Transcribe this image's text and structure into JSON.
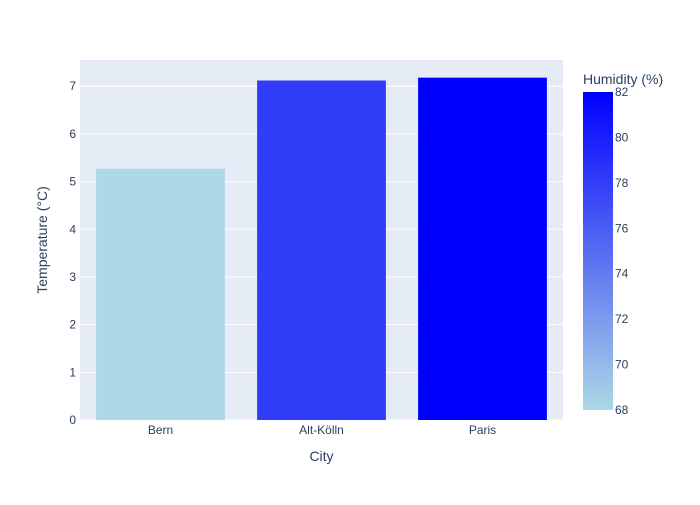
{
  "chart_data": {
    "type": "bar",
    "title": "",
    "xlabel": "City",
    "ylabel": "Temperature (°C)",
    "categories": [
      "Bern",
      "Alt-Kölln",
      "Paris"
    ],
    "values": [
      5.27,
      7.12,
      7.18
    ],
    "humidity": [
      68,
      78,
      82
    ],
    "ylim": [
      0,
      7.55
    ],
    "yticks": [
      "0",
      "1",
      "2",
      "3",
      "4",
      "5",
      "6",
      "7"
    ],
    "grid": true,
    "colorbar": {
      "title": "Humidity (%)",
      "range": [
        68,
        82
      ],
      "ticks": [
        "68",
        "70",
        "72",
        "74",
        "76",
        "78",
        "80",
        "82"
      ],
      "color_low": "#add8e6",
      "color_high": "#0000ff"
    },
    "plot_background": "#e5ecf6",
    "gridline_color": "#ffffff"
  }
}
